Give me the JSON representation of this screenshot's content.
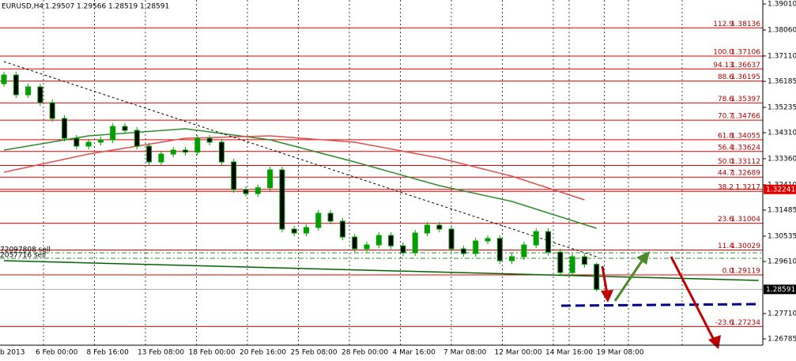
{
  "chart_data": {
    "type": "candlestick",
    "title": "EURUSD,H4",
    "ohlc_header": [
      1.29507,
      1.29566,
      1.28519,
      1.28591
    ],
    "time_labels": [
      "b 2013",
      "6 Feb 00:00",
      "8 Feb 16:00",
      "13 Feb 08:00",
      "18 Feb 00:00",
      "20 Feb 16:00",
      "25 Feb 08:00",
      "28 Feb 00:00",
      "4 Mar 16:00",
      "7 Mar 08:00",
      "12 Mar 00:00",
      "14 Mar 16:00",
      "19 Mar 08:00"
    ],
    "open": [
      1.361,
      1.36415,
      1.35694,
      1.35982,
      1.35405,
      1.34829,
      1.34108,
      1.3382,
      1.33964,
      1.3405,
      1.3454,
      1.34396,
      1.3382,
      1.33243,
      1.33531,
      1.33675,
      1.336,
      1.34108,
      1.33964,
      1.33243,
      1.32234,
      1.32089,
      1.323,
      1.32954,
      1.30792,
      1.30648,
      1.3085,
      1.31369,
      1.3108,
      1.30503,
      1.30071,
      1.30215,
      1.3056,
      1.3018,
      1.29927,
      1.30648,
      1.30936,
      1.30792,
      1.30071,
      1.299,
      1.30359,
      1.3045,
      1.29638,
      1.29783,
      1.30215,
      1.307,
      1.2995,
      1.29206,
      1.29783,
      1.29507
    ],
    "high": [
      1.36535,
      1.36535,
      1.36102,
      1.36102,
      1.35525,
      1.34949,
      1.34228,
      1.34084,
      1.3417,
      1.3466,
      1.3466,
      1.34516,
      1.3394,
      1.33651,
      1.33795,
      1.33795,
      1.34228,
      1.34228,
      1.34084,
      1.33363,
      1.32354,
      1.3242,
      1.33074,
      1.33074,
      1.30912,
      1.3097,
      1.31489,
      1.31489,
      1.312,
      1.30623,
      1.30335,
      1.3068,
      1.3068,
      1.303,
      1.30768,
      1.31056,
      1.31056,
      1.30912,
      1.30191,
      1.30479,
      1.3057,
      1.3057,
      1.29903,
      1.30335,
      1.3082,
      1.3082,
      1.3007,
      1.29903,
      1.29903,
      1.29566
    ],
    "low": [
      1.3598,
      1.35574,
      1.35574,
      1.35285,
      1.34709,
      1.33988,
      1.337,
      1.337,
      1.33844,
      1.3393,
      1.34276,
      1.337,
      1.33123,
      1.33123,
      1.33411,
      1.3348,
      1.3348,
      1.33844,
      1.33123,
      1.32114,
      1.31969,
      1.31969,
      1.3218,
      1.30672,
      1.30528,
      1.30528,
      1.3073,
      1.3096,
      1.30383,
      1.29951,
      1.29951,
      1.30095,
      1.3006,
      1.29807,
      1.29807,
      1.30528,
      1.30672,
      1.29951,
      1.2978,
      1.2978,
      1.30239,
      1.29518,
      1.29518,
      1.29663,
      1.30095,
      1.2983,
      1.29086,
      1.29086,
      1.29387,
      1.28519
    ],
    "close": [
      1.36415,
      1.35694,
      1.35982,
      1.35405,
      1.34829,
      1.34108,
      1.3382,
      1.33964,
      1.3405,
      1.3454,
      1.34396,
      1.3382,
      1.33243,
      1.33531,
      1.33675,
      1.336,
      1.34108,
      1.33964,
      1.33243,
      1.32234,
      1.32089,
      1.323,
      1.32954,
      1.30792,
      1.30648,
      1.3085,
      1.31369,
      1.3108,
      1.30503,
      1.30071,
      1.30215,
      1.3056,
      1.3018,
      1.29927,
      1.30648,
      1.30936,
      1.30792,
      1.30071,
      1.299,
      1.30359,
      1.3045,
      1.29638,
      1.29783,
      1.30215,
      1.307,
      1.2995,
      1.29206,
      1.29783,
      1.29507,
      1.28591
    ],
    "up_color": "#00a000",
    "down_color": "#000000",
    "ylim": [
      1.26554,
      1.39154
    ],
    "yticks": [
      {
        "value": 1.3901,
        "label": "1.39010"
      },
      {
        "value": 1.3806,
        "label": "1.38060"
      },
      {
        "value": 1.3711,
        "label": "1.37110"
      },
      1.36185,
      1.35235,
      {
        "value": 1.3431,
        "label": "1.34310"
      },
      {
        "value": 1.3336,
        "label": "1.33360"
      },
      {
        "value": 1.3241,
        "label": "1.32410"
      },
      1.31485,
      1.30535,
      {
        "value": 1.2961,
        "label": "1.29610"
      },
      {
        "value": 1.2771,
        "label": "1.27710"
      },
      1.26785
    ],
    "price_labels": [
      {
        "value": 1.32241,
        "color": "#e00000"
      },
      {
        "value": 1.28591,
        "color": "#000000"
      }
    ],
    "fib_color": "#e00000",
    "fib_levels": [
      {
        "ratio": "112.9",
        "price": 1.38136
      },
      {
        "ratio": "100.0",
        "price": 1.37106
      },
      {
        "ratio": "94.13",
        "price": 1.36637
      },
      {
        "ratio": "88.6",
        "price": 1.36195
      },
      {
        "ratio": "78.6",
        "price": 1.35397
      },
      {
        "ratio": "70.7",
        "price": 1.34766
      },
      {
        "ratio": "61.8",
        "price": 1.34055
      },
      {
        "ratio": "56.4",
        "price": 1.33624
      },
      {
        "ratio": "50.0",
        "price": 1.33112
      },
      {
        "ratio": "44.7",
        "price": 1.32689
      },
      {
        "ratio": "38.2",
        "price": 1.3217
      },
      {
        "ratio": "23.6",
        "price": 1.31004
      },
      {
        "ratio": "11.4",
        "price": 1.30029
      },
      {
        "ratio": "0.0",
        "price": 1.29119
      },
      {
        "ratio": "-23.6",
        "price": 1.27234
      }
    ],
    "orders": [
      {
        "label": "72097808 sell",
        "price": 1.29927
      },
      {
        "label": "2057716 sell",
        "price": 1.29725
      }
    ],
    "lines": [
      {
        "color": "#2e8b2e",
        "dash": false,
        "x": [
          0,
          7,
          15,
          22,
          29,
          36,
          42,
          49
        ],
        "values": [
          1.33675,
          1.34194,
          1.34454,
          1.3405,
          1.33243,
          1.32378,
          1.31801,
          1.30821
        ]
      },
      {
        "color": "#e05050",
        "dash": false,
        "x": [
          0,
          7,
          15,
          22,
          29,
          36,
          42,
          48
        ],
        "values": [
          1.32868,
          1.33531,
          1.34108,
          1.34194,
          1.33964,
          1.33387,
          1.32724,
          1.31859
        ]
      },
      {
        "color": "#000000",
        "dash": true,
        "x": [
          0,
          49
        ],
        "values": [
          1.36905,
          1.29783
        ]
      },
      {
        "color": "#006400",
        "dash": false,
        "x": [
          0,
          62.4
        ],
        "values": [
          1.29638,
          1.28917
        ]
      }
    ]
  }
}
